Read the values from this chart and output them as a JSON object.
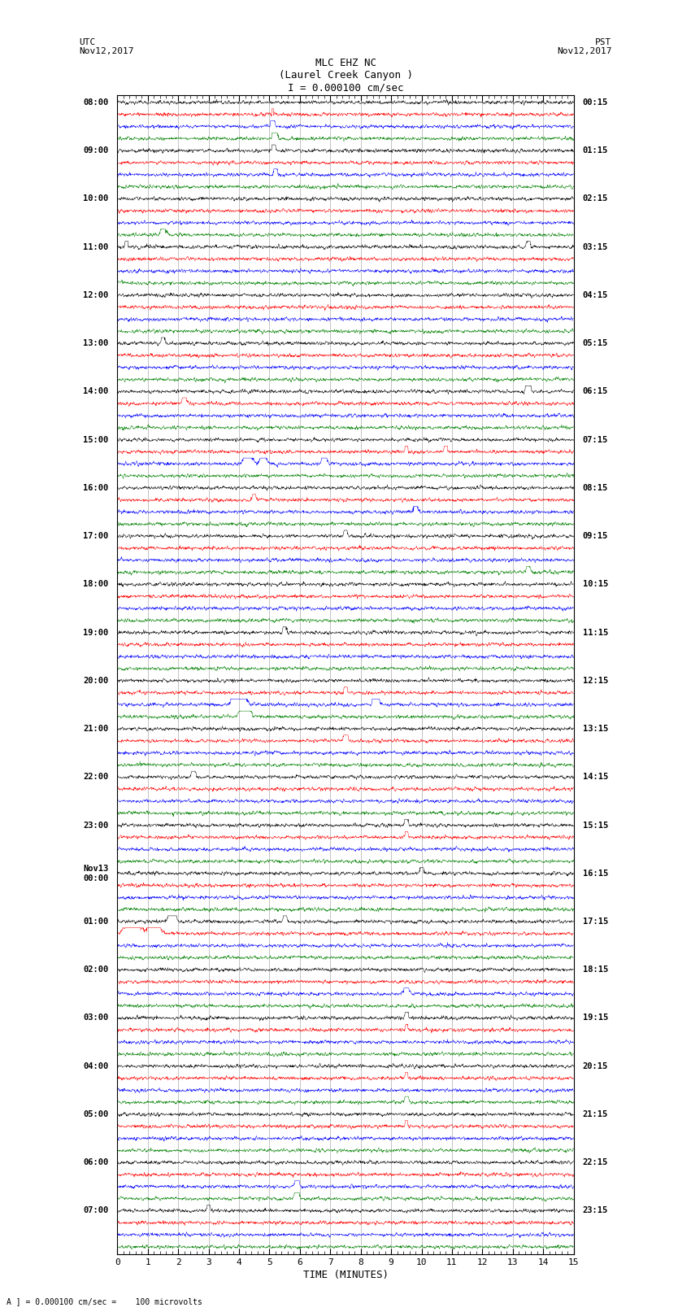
{
  "title_line1": "MLC EHZ NC",
  "title_line2": "(Laurel Creek Canyon )",
  "title_line3": "I = 0.000100 cm/sec",
  "left_header_line1": "UTC",
  "left_header_line2": "Nov12,2017",
  "right_header_line1": "PST",
  "right_header_line2": "Nov12,2017",
  "bottom_label": "TIME (MINUTES)",
  "bottom_note": "A ] = 0.000100 cm/sec =    100 microvolts",
  "xlim": [
    0,
    15
  ],
  "xticks": [
    0,
    1,
    2,
    3,
    4,
    5,
    6,
    7,
    8,
    9,
    10,
    11,
    12,
    13,
    14,
    15
  ],
  "utc_times": [
    "08:00",
    "09:00",
    "10:00",
    "11:00",
    "12:00",
    "13:00",
    "14:00",
    "15:00",
    "16:00",
    "17:00",
    "18:00",
    "19:00",
    "20:00",
    "21:00",
    "22:00",
    "23:00",
    "Nov13\n00:00",
    "01:00",
    "02:00",
    "03:00",
    "04:00",
    "05:00",
    "06:00",
    "07:00"
  ],
  "pst_times": [
    "00:15",
    "01:15",
    "02:15",
    "03:15",
    "04:15",
    "05:15",
    "06:15",
    "07:15",
    "08:15",
    "09:15",
    "10:15",
    "11:15",
    "12:15",
    "13:15",
    "14:15",
    "15:15",
    "16:15",
    "17:15",
    "18:15",
    "19:15",
    "20:15",
    "21:15",
    "22:15",
    "23:15"
  ],
  "n_hours": 24,
  "traces_per_hour": 4,
  "colors": [
    "black",
    "red",
    "blue",
    "green"
  ],
  "bg_color": "white",
  "grid_color": "#aaaaaa",
  "spine_color": "black",
  "vline_color": "#888888",
  "fig_width": 8.5,
  "fig_height": 16.13
}
